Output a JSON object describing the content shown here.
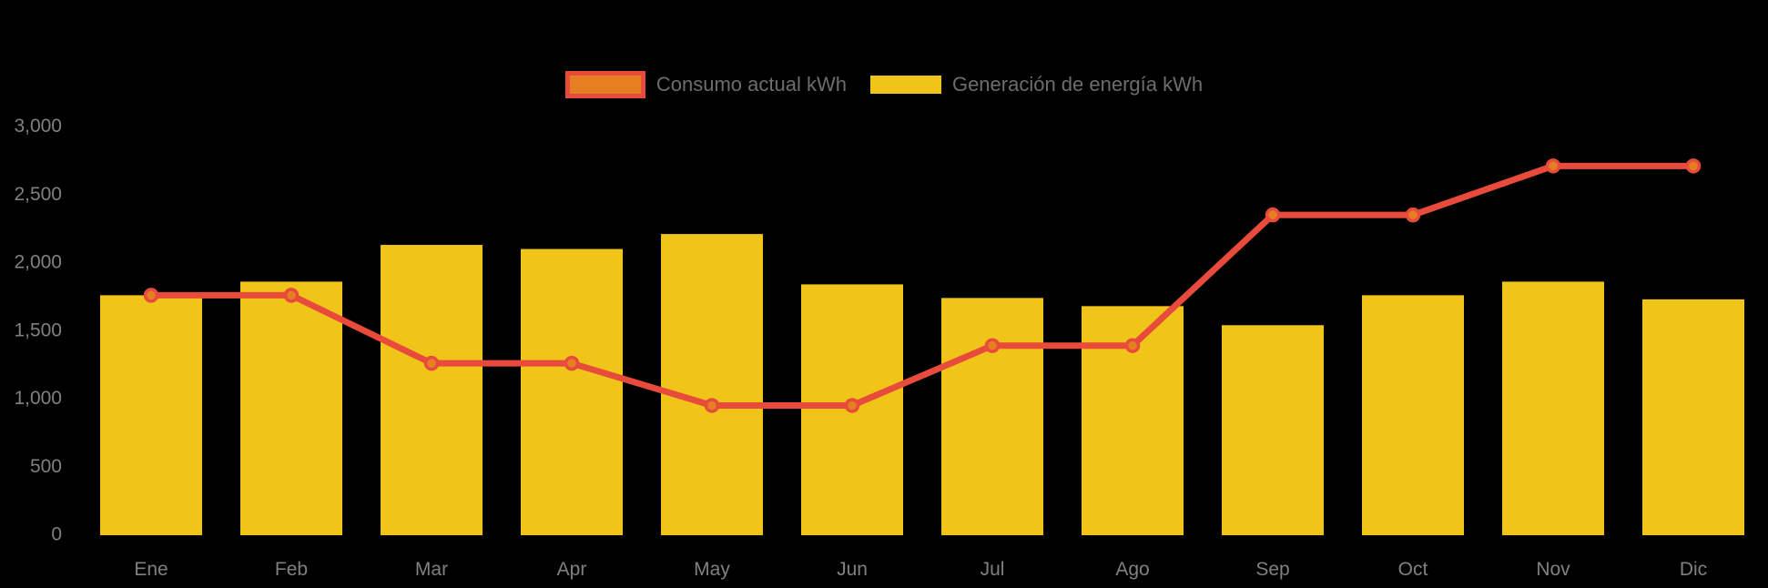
{
  "background_color": "#000000",
  "legend": {
    "items": [
      {
        "label": "Consumo actual kWh",
        "swatch_fill": "#e67e22",
        "swatch_border": "#e84b3c",
        "series_type": "line"
      },
      {
        "label": "Generación de energía kWh",
        "swatch_fill": "#f0c419",
        "swatch_border": null,
        "series_type": "bar"
      }
    ]
  },
  "chart_data": {
    "type": "bar+line combo",
    "title": "",
    "xlabel": "",
    "ylabel": "",
    "categories": [
      "Ene",
      "Feb",
      "Mar",
      "Apr",
      "May",
      "Jun",
      "Jul",
      "Ago",
      "Sep",
      "Oct",
      "Nov",
      "Dic"
    ],
    "series": [
      {
        "name": "Consumo actual kWh",
        "type": "line",
        "line_color": "#e84b3c",
        "point_fill": "#e67e22",
        "point_stroke": "#e84b3c",
        "values": [
          1750,
          1750,
          1250,
          1250,
          940,
          940,
          1380,
          1380,
          2340,
          2340,
          2700,
          2700
        ]
      },
      {
        "name": "Generación de energía kWh",
        "type": "bar",
        "bar_color": "#f0c419",
        "values": [
          1750,
          1850,
          2120,
          2090,
          2200,
          1830,
          1730,
          1670,
          1530,
          1750,
          1850,
          1720
        ]
      }
    ],
    "y_ticks": [
      {
        "value": 3000,
        "label": "3,000"
      },
      {
        "value": 2500,
        "label": "2,500"
      },
      {
        "value": 2000,
        "label": "2,000"
      },
      {
        "value": 1500,
        "label": "1,500"
      },
      {
        "value": 1000,
        "label": "1,000"
      },
      {
        "value": 500,
        "label": "500"
      },
      {
        "value": 0,
        "label": "0"
      }
    ],
    "ylim": [
      0,
      3000
    ],
    "grid": false,
    "legend_position": "top-center",
    "tick_color": "#808080"
  }
}
